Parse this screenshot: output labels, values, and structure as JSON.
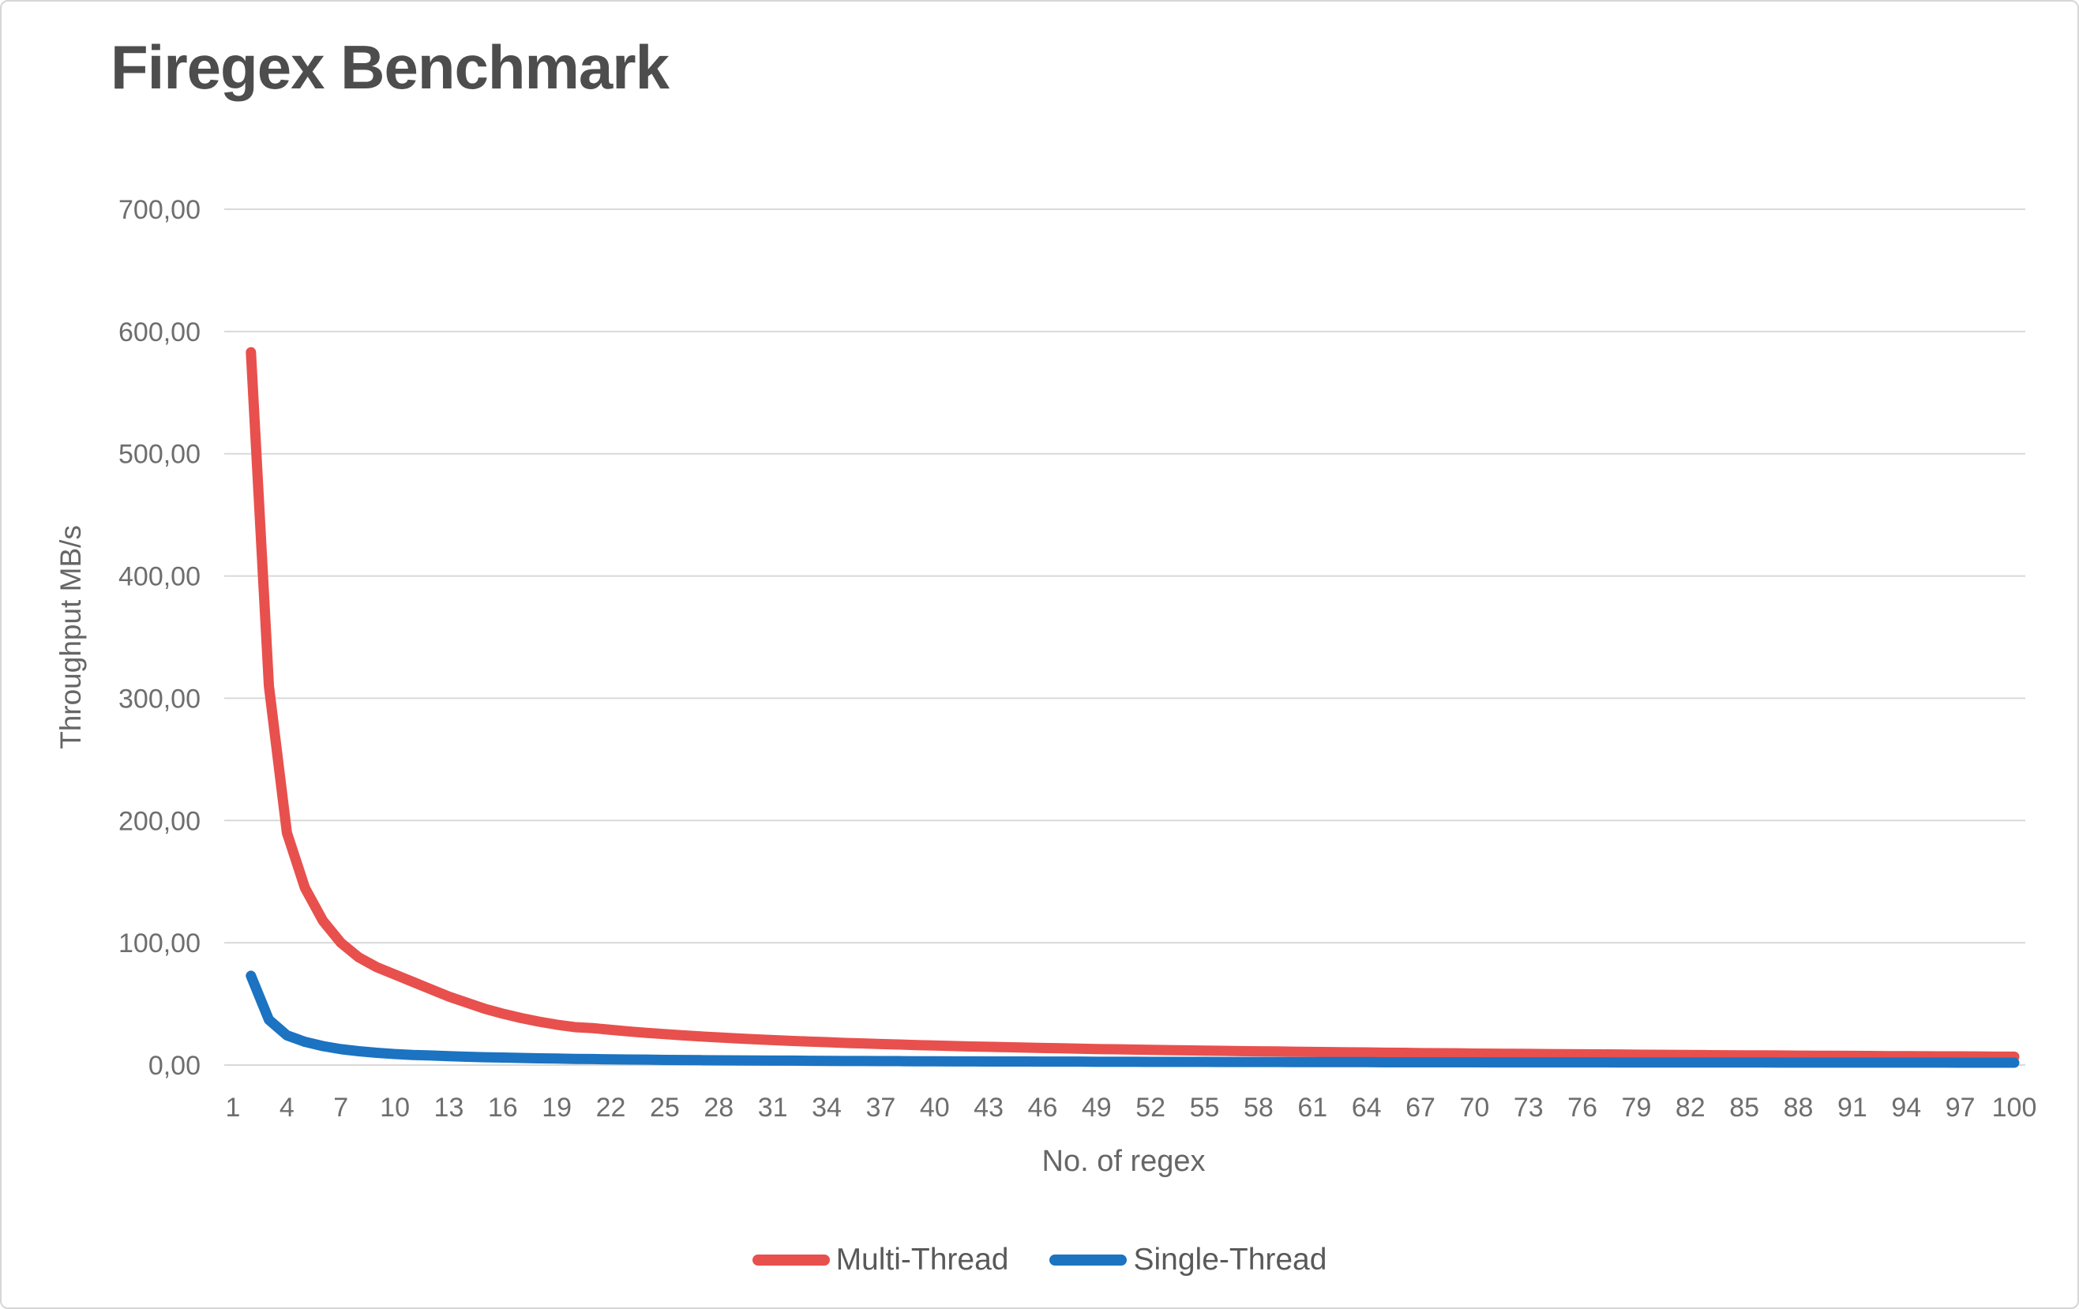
{
  "chart_data": {
    "type": "line",
    "title": "Firegex Benchmark",
    "xlabel": "No. of regex",
    "ylabel": "Throughput MB/s",
    "ylim": [
      0,
      700
    ],
    "xlim": [
      1,
      100
    ],
    "grid": "horizontal",
    "grid_color": "#d9d9d9",
    "tick_label_color": "#6e6e6e",
    "legend_position": "bottom",
    "y_tick_labels": [
      "0,00",
      "100,00",
      "200,00",
      "300,00",
      "400,00",
      "500,00",
      "600,00",
      "700,00"
    ],
    "x_tick_labels": [
      "1",
      "4",
      "7",
      "10",
      "13",
      "16",
      "19",
      "22",
      "25",
      "28",
      "31",
      "34",
      "37",
      "40",
      "43",
      "46",
      "49",
      "52",
      "55",
      "58",
      "61",
      "64",
      "67",
      "70",
      "73",
      "76",
      "79",
      "82",
      "85",
      "88",
      "91",
      "94",
      "97",
      "100"
    ],
    "series": [
      {
        "name": "Multi-Thread",
        "color": "#e8504d",
        "x_start": 2,
        "x_step": 1,
        "values": [
          583,
          310,
          190,
          145,
          118,
          100,
          88,
          80,
          74,
          68,
          62,
          56,
          51,
          46,
          42,
          38.5,
          35.5,
          33,
          31,
          30.2,
          28.8,
          27.5,
          26.3,
          25.3,
          24.3,
          23.4,
          22.6,
          21.8,
          21.1,
          20.4,
          19.8,
          19.2,
          18.7,
          18.1,
          17.7,
          17.2,
          16.8,
          16.3,
          16.0,
          15.6,
          15.2,
          14.9,
          14.6,
          14.3,
          14.0,
          13.7,
          13.4,
          13.1,
          12.9,
          12.7,
          12.4,
          12.2,
          12.0,
          11.8,
          11.6,
          11.4,
          11.2,
          11.1,
          10.9,
          10.7,
          10.6,
          10.4,
          10.3,
          10.1,
          10.0,
          9.8,
          9.7,
          9.6,
          9.4,
          9.3,
          9.2,
          9.1,
          9.0,
          8.9,
          8.8,
          8.7,
          8.6,
          8.5,
          8.4,
          8.3,
          8.2,
          8.1,
          8.0,
          7.9,
          7.9,
          7.8,
          7.7,
          7.6,
          7.6,
          7.5,
          7.4,
          7.3,
          7.3,
          7.2,
          7.1,
          7.1,
          7.0,
          6.9,
          6.9
        ]
      },
      {
        "name": "Single-Thread",
        "color": "#1b73c1",
        "x_start": 2,
        "x_step": 1,
        "values": [
          73,
          37,
          24.3,
          19,
          15.5,
          13,
          11.3,
          10,
          9,
          8.2,
          7.8,
          7.3,
          6.8,
          6.4,
          6.1,
          5.8,
          5.5,
          5.3,
          5.0,
          4.9,
          4.7,
          4.5,
          4.4,
          4.2,
          4.1,
          4.0,
          3.9,
          3.8,
          3.7,
          3.6,
          3.6,
          3.5,
          3.4,
          3.3,
          3.3,
          3.2,
          3.2,
          3.1,
          3.1,
          3.0,
          3.0,
          2.9,
          2.9,
          2.9,
          2.8,
          2.8,
          2.8,
          2.7,
          2.7,
          2.7,
          2.6,
          2.6,
          2.6,
          2.6,
          2.5,
          2.5,
          2.5,
          2.5,
          2.4,
          2.4,
          2.4,
          2.4,
          2.4,
          2.3,
          2.3,
          2.3,
          2.3,
          2.3,
          2.3,
          2.2,
          2.2,
          2.2,
          2.2,
          2.2,
          2.2,
          2.2,
          2.1,
          2.1,
          2.1,
          2.1,
          2.1,
          2.1,
          2.1,
          2.1,
          2.1,
          2.0,
          2.0,
          2.0,
          2.0,
          2.0,
          2.0,
          2.0,
          2.0,
          2.0,
          2.0,
          1.9,
          1.9,
          1.9,
          1.9
        ]
      }
    ]
  }
}
